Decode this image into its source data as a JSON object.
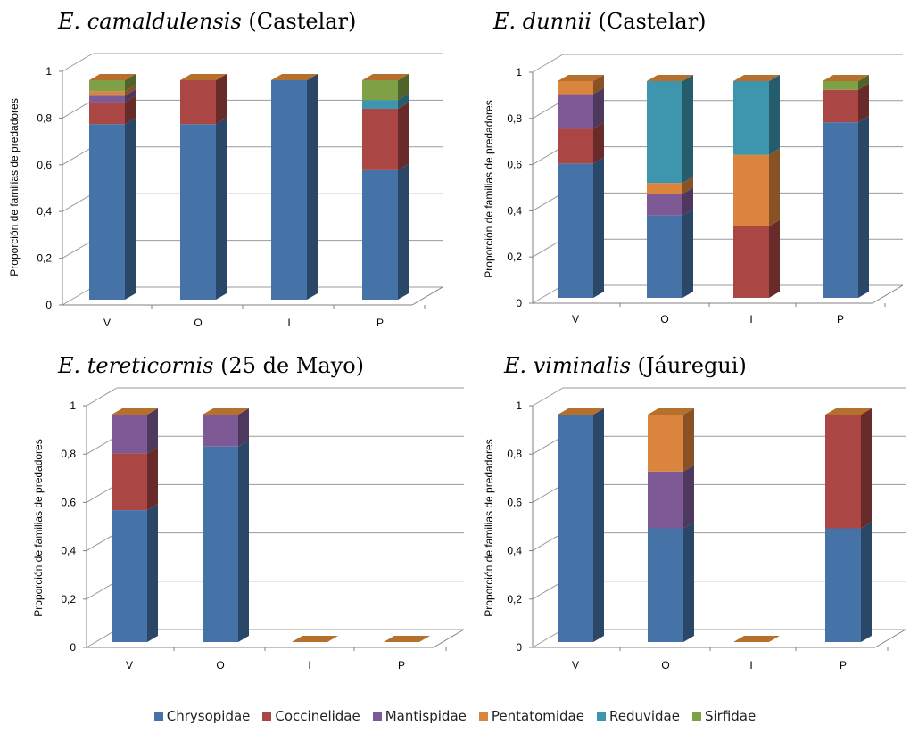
{
  "legend": [
    {
      "name": "Chrysopidae",
      "color": "#4572A7"
    },
    {
      "name": "Coccinelidae",
      "color": "#AA4643"
    },
    {
      "name": "Mantispidae",
      "color": "#7D5A96"
    },
    {
      "name": "Pentatomidae",
      "color": "#DB843D"
    },
    {
      "name": "Reduvidae",
      "color": "#3D96AE"
    },
    {
      "name": "Sirfidae",
      "color": "#80A046"
    }
  ],
  "chart_data": [
    {
      "type": "bar",
      "stacked": true,
      "title_italic": "E. camaldulensis",
      "title_rest": " (Castelar)",
      "ylabel": "Proporción de familias de predadores",
      "categories": [
        "V",
        "O",
        "I",
        "P"
      ],
      "yticks": [
        "0",
        "0,2",
        "0,4",
        "0,6",
        "0,8",
        "1"
      ],
      "ylim": [
        0,
        1
      ],
      "series": [
        {
          "name": "Chrysopidae",
          "values": [
            0.8,
            0.8,
            1.0,
            0.59
          ]
        },
        {
          "name": "Coccinelidae",
          "values": [
            0.1,
            0.2,
            0,
            0.28
          ]
        },
        {
          "name": "Mantispidae",
          "values": [
            0.03,
            0,
            0,
            0
          ]
        },
        {
          "name": "Pentatomidae",
          "values": [
            0.02,
            0,
            0,
            0
          ]
        },
        {
          "name": "Reduvidae",
          "values": [
            0,
            0,
            0,
            0.04
          ]
        },
        {
          "name": "Sirfidae",
          "values": [
            0.05,
            0,
            0,
            0.09
          ]
        }
      ]
    },
    {
      "type": "bar",
      "stacked": true,
      "title_italic": "E. dunnii",
      "title_rest": " (Castelar)",
      "ylabel": "Proporción de familias de predadores",
      "categories": [
        "V",
        "O",
        "I",
        "P"
      ],
      "yticks": [
        "0",
        "0,2",
        "0,4",
        "0,6",
        "0,8",
        "1"
      ],
      "ylim": [
        0,
        1
      ],
      "series": [
        {
          "name": "Chrysopidae",
          "values": [
            0.62,
            0.38,
            0,
            0.81
          ]
        },
        {
          "name": "Coccinelidae",
          "values": [
            0.16,
            0,
            0.33,
            0.15
          ]
        },
        {
          "name": "Mantispidae",
          "values": [
            0.16,
            0.1,
            0,
            0
          ]
        },
        {
          "name": "Pentatomidae",
          "values": [
            0.06,
            0.05,
            0.33,
            0
          ]
        },
        {
          "name": "Reduvidae",
          "values": [
            0,
            0.47,
            0.34,
            0
          ]
        },
        {
          "name": "Sirfidae",
          "values": [
            0,
            0,
            0,
            0.04
          ]
        }
      ]
    },
    {
      "type": "bar",
      "stacked": true,
      "title_italic": "E. tereticornis",
      "title_rest": "  (25 de Mayo)",
      "ylabel": "Proporción de familias de predadores",
      "categories": [
        "V",
        "O",
        "I",
        "P"
      ],
      "yticks": [
        "0",
        "0,2",
        "0,4",
        "0,6",
        "0,8",
        "1"
      ],
      "ylim": [
        0,
        1
      ],
      "series": [
        {
          "name": "Chrysopidae",
          "values": [
            0.58,
            0.86,
            0,
            0
          ]
        },
        {
          "name": "Coccinelidae",
          "values": [
            0.25,
            0,
            0,
            0
          ]
        },
        {
          "name": "Mantispidae",
          "values": [
            0.17,
            0.14,
            0,
            0
          ]
        },
        {
          "name": "Pentatomidae",
          "values": [
            0,
            0,
            0,
            0
          ]
        },
        {
          "name": "Reduvidae",
          "values": [
            0,
            0,
            0,
            0
          ]
        },
        {
          "name": "Sirfidae",
          "values": [
            0,
            0,
            0,
            0
          ]
        }
      ]
    },
    {
      "type": "bar",
      "stacked": true,
      "title_italic": "E. viminalis",
      "title_rest": " (Jáuregui)",
      "ylabel": "Proporción de familias de predadores",
      "categories": [
        "V",
        "O",
        "I",
        "P"
      ],
      "yticks": [
        "0",
        "0,2",
        "0,4",
        "0,6",
        "0,8",
        "1"
      ],
      "ylim": [
        0,
        1
      ],
      "series": [
        {
          "name": "Chrysopidae",
          "values": [
            1.0,
            0.5,
            0,
            0.5
          ]
        },
        {
          "name": "Coccinelidae",
          "values": [
            0,
            0,
            0,
            0.5
          ]
        },
        {
          "name": "Mantispidae",
          "values": [
            0,
            0.25,
            0,
            0
          ]
        },
        {
          "name": "Pentatomidae",
          "values": [
            0,
            0.25,
            0,
            0
          ]
        },
        {
          "name": "Reduvidae",
          "values": [
            0,
            0,
            0,
            0
          ]
        },
        {
          "name": "Sirfidae",
          "values": [
            0,
            0,
            0,
            0
          ]
        }
      ]
    }
  ]
}
